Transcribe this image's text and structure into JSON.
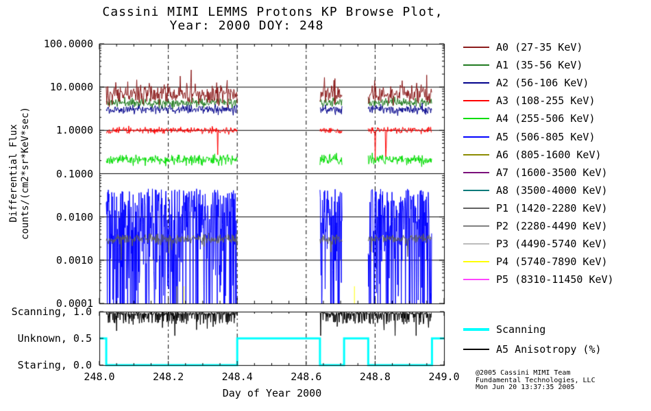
{
  "title": {
    "line1": "Cassini MIMI LEMMS Protons KP Browse Plot,",
    "line2": "Year: 2000 DOY: 248"
  },
  "axes": {
    "x_label": "Day of Year 2000",
    "y_label_line1": "Differential Flux",
    "y_label_line2": "counts/(cm2*sr*KeV*sec)",
    "x_ticks": [
      "248.0",
      "248.2",
      "248.4",
      "248.6",
      "248.8",
      "249.0"
    ],
    "y_ticks": [
      "100.0000",
      "10.0000",
      "1.0000",
      "0.1000",
      "0.0100",
      "0.0010",
      "0.0001"
    ],
    "mode_labels": [
      "Scanning, 1.0",
      "Unknown, 0.5",
      "Staring, 0.0"
    ]
  },
  "legend": {
    "entries": [
      {
        "label": "A0 (27-35 KeV)",
        "color": "#8B1A1A"
      },
      {
        "label": "A1 (35-56 KeV)",
        "color": "#1F7A1F"
      },
      {
        "label": "A2 (56-106 KeV)",
        "color": "#00008B"
      },
      {
        "label": "A3 (108-255 KeV)",
        "color": "#FF0000"
      },
      {
        "label": "A4 (255-506 KeV)",
        "color": "#00DD00"
      },
      {
        "label": "A5 (506-805 KeV)",
        "color": "#0000FF"
      },
      {
        "label": "A6 (805-1600 KeV)",
        "color": "#8B8B00"
      },
      {
        "label": "A7 (1600-3500 KeV)",
        "color": "#7A0F7A"
      },
      {
        "label": "A8 (3500-4000 KeV)",
        "color": "#007A7A"
      },
      {
        "label": "P1 (1420-2280 KeV)",
        "color": "#606060"
      },
      {
        "label": "P2 (2280-4490 KeV)",
        "color": "#808080"
      },
      {
        "label": "P3 (4490-5740 KeV)",
        "color": "#BBBBBB"
      },
      {
        "label": "P4 (5740-7890 KeV)",
        "color": "#FFFF00"
      },
      {
        "label": "P5 (8310-11450 KeV)",
        "color": "#FF44FF"
      }
    ],
    "mode_entries": [
      {
        "label": "Scanning",
        "color": "#00FFFF",
        "thick": true
      },
      {
        "label": "A5 Anisotropy (%)",
        "color": "#000000",
        "thick": false
      }
    ]
  },
  "credits": {
    "line1": "@2005 Cassini MIMI Team",
    "line2": "Fundamental Technologies, LLC",
    "line3": "Mon Jun 20 13:37:35 2005"
  },
  "chart_data": {
    "type": "line",
    "title": "Cassini MIMI LEMMS Protons KP Browse Plot, Year: 2000 DOY: 248",
    "xlabel": "Day of Year 2000",
    "ylabel": "Differential Flux counts/(cm2*sr*KeV*sec)",
    "x_range": [
      248.0,
      249.0
    ],
    "y_range_log": [
      0.0001,
      100.0
    ],
    "y_scale": "log",
    "x_gridlines": [
      248.2,
      248.4,
      248.6,
      248.8
    ],
    "y_gridlines": [
      10.0,
      1.0,
      0.1,
      0.01,
      0.001
    ],
    "data_segments": [
      [
        248.02,
        248.4
      ],
      [
        248.64,
        248.705
      ],
      [
        248.78,
        248.965
      ]
    ],
    "series": [
      {
        "name": "A0",
        "color": "#8B1A1A",
        "plotted": true,
        "level": 6.8,
        "log_sigma": 0.11,
        "up_spike": 0.38,
        "up_spike_p": 0.05,
        "seed": 10,
        "step": 0.00145
      },
      {
        "name": "A1",
        "color": "#1F7A1F",
        "plotted": true,
        "level": 4.4,
        "log_sigma": 0.05,
        "seed": 11,
        "step": 0.00145
      },
      {
        "name": "A2",
        "color": "#00008B",
        "plotted": true,
        "level": 3.1,
        "log_sigma": 0.05,
        "seed": 12,
        "step": 0.00145
      },
      {
        "name": "A3",
        "color": "#FF0000",
        "plotted": true,
        "level": 1.0,
        "log_sigma": 0.035,
        "down_spike": 0.8,
        "down_spike_p": 0.008,
        "seed": 13,
        "step": 0.00145
      },
      {
        "name": "A4",
        "color": "#00DD00",
        "plotted": true,
        "level": 0.21,
        "log_sigma": 0.06,
        "seed": 14,
        "step": 0.00145
      },
      {
        "name": "A5",
        "color": "#0000FF",
        "plotted": true,
        "style": "spiky",
        "top_log": -1.35,
        "tail": 1.15,
        "seed": 15,
        "step": 0.001
      },
      {
        "name": "A6",
        "color": "#8B8B00",
        "plotted": false
      },
      {
        "name": "A7",
        "color": "#7A0F7A",
        "plotted": false
      },
      {
        "name": "A8",
        "color": "#007A7A",
        "plotted": false
      },
      {
        "name": "P1",
        "color": "#606060",
        "plotted": true,
        "level": 0.0031,
        "log_sigma": 0.06,
        "down_spike": 0.5,
        "down_spike_p": 0.02,
        "seed": 19,
        "step": 0.00145
      },
      {
        "name": "P2",
        "color": "#808080",
        "plotted": false
      },
      {
        "name": "P3",
        "color": "#BBBBBB",
        "plotted": false
      },
      {
        "name": "P4",
        "color": "#FFFF00",
        "plotted": true,
        "events": [
          248.225,
          248.245,
          248.74
        ],
        "event_level": 0.00025
      },
      {
        "name": "P5",
        "color": "#FF44FF",
        "plotted": false
      }
    ],
    "mode_line": {
      "label": "Scanning",
      "color": "#00FFFF",
      "levels": {
        "Scanning": 1.0,
        "Unknown": 0.5,
        "Staring": 0.0
      },
      "steps": [
        [
          248.0,
          0.5
        ],
        [
          248.02,
          0.0
        ],
        [
          248.4,
          0.5
        ],
        [
          248.64,
          0.0
        ],
        [
          248.71,
          0.5
        ],
        [
          248.78,
          0.0
        ],
        [
          248.965,
          0.5
        ],
        [
          249.0,
          0.5
        ]
      ]
    },
    "anisotropy": {
      "label": "A5 Anisotropy (%)",
      "color": "#000000",
      "level": 0.97,
      "segments": [
        [
          248.02,
          248.4
        ],
        [
          248.64,
          248.965
        ]
      ]
    }
  }
}
